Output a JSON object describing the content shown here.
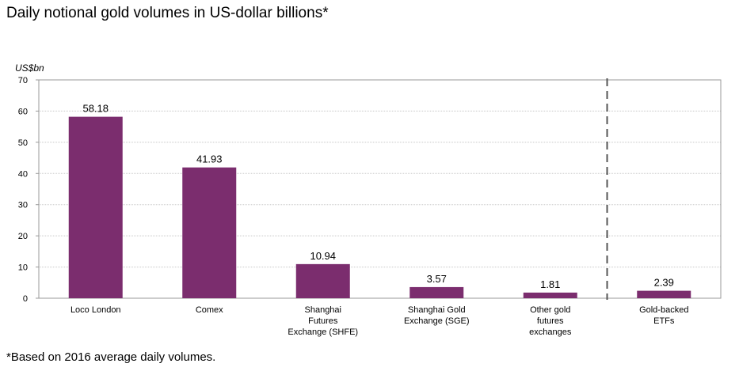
{
  "title": "Daily notional gold volumes in US-dollar billions*",
  "footnote": "*Based on 2016 average daily volumes.",
  "colors": {
    "bar": "#7b2d6e",
    "grid": "#c8c8c8",
    "axis": "#999999",
    "divider": "#555555"
  },
  "chart_data": {
    "type": "bar",
    "ylabel": "US$bn",
    "xlabel": "",
    "ylim": [
      0,
      70
    ],
    "yticks": [
      0,
      10,
      20,
      30,
      40,
      50,
      60,
      70
    ],
    "grid": true,
    "categories": [
      [
        "Loco London"
      ],
      [
        "Comex"
      ],
      [
        "Shanghai",
        "Futures",
        "Exchange (SHFE)"
      ],
      [
        "Shanghai Gold",
        "Exchange (SGE)"
      ],
      [
        "Other gold",
        "futures",
        "exchanges"
      ],
      [
        "Gold-backed",
        "ETFs"
      ]
    ],
    "values": [
      58.18,
      41.93,
      10.94,
      3.57,
      1.81,
      2.39
    ],
    "value_labels": [
      "58.18",
      "41.93",
      "10.94",
      "3.57",
      "1.81",
      "2.39"
    ],
    "divider_before_index": 5
  }
}
